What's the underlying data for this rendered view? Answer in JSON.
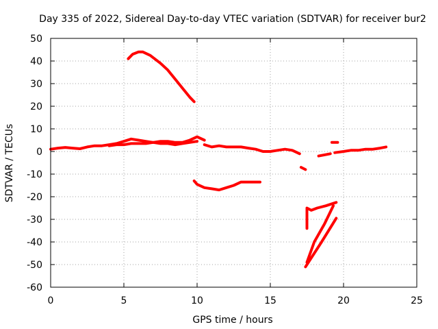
{
  "chart_data": {
    "type": "line",
    "title": "Day 335 of 2022, Sidereal Day-to-day VTEC variation (SDTVAR) for receiver bur2",
    "xlabel": "GPS time / hours",
    "ylabel": "SDTVAR / TECUs",
    "xlim": [
      0,
      25
    ],
    "ylim": [
      -60,
      50
    ],
    "xticks": [
      0,
      5,
      10,
      15,
      20,
      25
    ],
    "yticks": [
      -60,
      -50,
      -40,
      -30,
      -20,
      -10,
      0,
      10,
      20,
      30,
      40,
      50
    ],
    "grid": true,
    "color": "#ff0000",
    "series": [
      {
        "name": "baseline-0-10h",
        "x": [
          0,
          0.5,
          1,
          1.5,
          2,
          2.5,
          3,
          3.5,
          4,
          4.5,
          5,
          5.5,
          6,
          6.5,
          7,
          7.5,
          8,
          8.5,
          9,
          9.5,
          10,
          10.5
        ],
        "y": [
          1,
          1.5,
          1.8,
          1.5,
          1.2,
          2,
          2.5,
          2.5,
          3,
          3.5,
          4.5,
          5.5,
          5,
          4.5,
          4,
          4.5,
          4.5,
          4,
          4,
          5,
          6.5,
          5
        ]
      },
      {
        "name": "baseline-lower-band",
        "x": [
          4,
          4.5,
          5,
          5.5,
          6,
          6.5,
          7,
          7.5,
          8,
          8.5,
          9,
          9.5,
          10
        ],
        "y": [
          2.5,
          3,
          3,
          3.5,
          3.5,
          3.5,
          4,
          3.5,
          3.5,
          3,
          3.5,
          4,
          4.5
        ]
      },
      {
        "name": "baseline-10-17h",
        "x": [
          10.5,
          11,
          11.5,
          12,
          12.5,
          13,
          13.5,
          14,
          14.5,
          15,
          15.5,
          16,
          16.5,
          17
        ],
        "y": [
          3,
          2,
          2.5,
          2,
          2,
          2,
          1.5,
          1,
          0,
          0,
          0.5,
          1,
          0.5,
          -1
        ]
      },
      {
        "name": "arc-high",
        "x": [
          5.3,
          5.6,
          6,
          6.3,
          6.8,
          7.5,
          8,
          8.5,
          9,
          9.5,
          9.8
        ],
        "y": [
          41,
          43,
          44,
          44,
          42.5,
          39,
          36,
          32,
          28,
          24,
          22
        ]
      },
      {
        "name": "arc-low",
        "x": [
          9.8,
          10,
          10.5,
          11,
          11.5,
          12,
          12.5,
          13,
          13.5,
          14,
          14.3
        ],
        "y": [
          -13,
          -14.5,
          -16,
          -16.5,
          -17,
          -16,
          -15,
          -13.5,
          -13.5,
          -13.5,
          -13.5
        ]
      },
      {
        "name": "dip-17h",
        "x": [
          17.1,
          17.4
        ],
        "y": [
          -7,
          -8
        ]
      },
      {
        "name": "seg-19h",
        "x": [
          19.2,
          19.6
        ],
        "y": [
          4,
          4
        ]
      },
      {
        "name": "seg-18h",
        "x": [
          18.3,
          18.7,
          19.1
        ],
        "y": [
          -2,
          -1.5,
          -1
        ]
      },
      {
        "name": "baseline-19-23h",
        "x": [
          19.4,
          20,
          20.5,
          21,
          21.5,
          22,
          22.5,
          22.9
        ],
        "y": [
          -0.5,
          0,
          0.5,
          0.5,
          1,
          1,
          1.5,
          2
        ]
      },
      {
        "name": "v-shape-a",
        "x": [
          17.5,
          17.5,
          17.8,
          18.2,
          18.8,
          19.5
        ],
        "y": [
          -34,
          -25,
          -26,
          -25,
          -24,
          -22.5
        ]
      },
      {
        "name": "v-shape-b",
        "x": [
          17.4,
          18.5,
          19.5
        ],
        "y": [
          -51,
          -40,
          -29.5
        ]
      },
      {
        "name": "v-shape-c",
        "x": [
          17.5,
          18,
          18.7,
          19.3
        ],
        "y": [
          -49,
          -40,
          -32,
          -24
        ]
      }
    ]
  }
}
